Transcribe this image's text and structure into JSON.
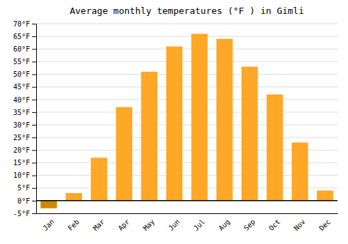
{
  "chart_data": {
    "type": "bar",
    "title": "Average monthly temperatures (°F ) in Gimli",
    "categories": [
      "Jan",
      "Feb",
      "Mar",
      "Apr",
      "May",
      "Jun",
      "Jul",
      "Aug",
      "Sep",
      "Oct",
      "Nov",
      "Dec"
    ],
    "values": [
      -3,
      3,
      17,
      37,
      51,
      61,
      66,
      64,
      53,
      42,
      23,
      4
    ],
    "colors": [
      "#CC8800",
      "#FFA726",
      "#FFA726",
      "#FFA726",
      "#FFA726",
      "#FFA726",
      "#FFA726",
      "#FFA726",
      "#FFA726",
      "#FFA726",
      "#FFA726",
      "#FFA726"
    ],
    "ylim": [
      -5,
      70
    ],
    "yticks": [
      {
        "value": -5,
        "label": "-5°F"
      },
      {
        "value": 0,
        "label": "0°F"
      },
      {
        "value": 5,
        "label": "5°F"
      },
      {
        "value": 10,
        "label": "10°F"
      },
      {
        "value": 15,
        "label": "15°F"
      },
      {
        "value": 20,
        "label": "20°F"
      },
      {
        "value": 25,
        "label": "25°F"
      },
      {
        "value": 30,
        "label": "30°F"
      },
      {
        "value": 35,
        "label": "35°F"
      },
      {
        "value": 40,
        "label": "40°F"
      },
      {
        "value": 45,
        "label": "45°F"
      },
      {
        "value": 50,
        "label": "50°F"
      },
      {
        "value": 55,
        "label": "55°F"
      },
      {
        "value": 60,
        "label": "60°F"
      },
      {
        "value": 65,
        "label": "65°F"
      },
      {
        "value": 70,
        "label": "70°F"
      }
    ],
    "grid": true
  }
}
